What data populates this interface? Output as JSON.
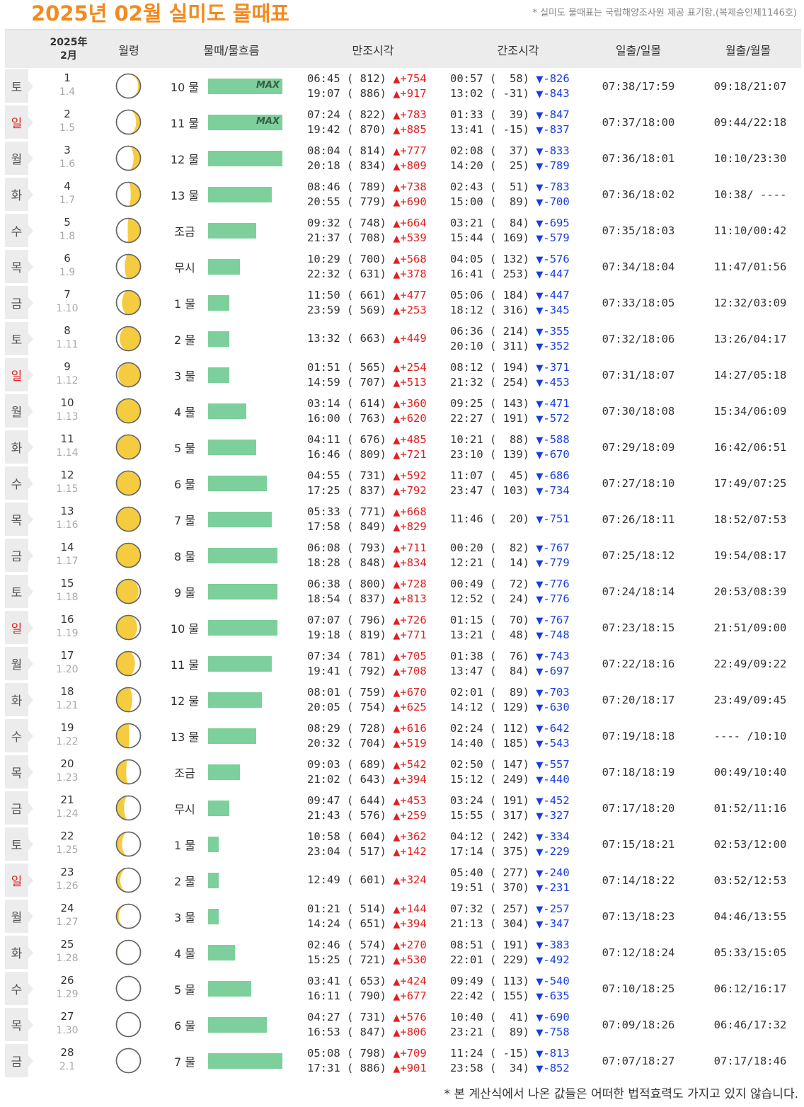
{
  "header": {
    "title": "2025년 02월 실미도 물때표",
    "source_note": "* 실미도 물때표는 국립해양조사원 제공 표기함.(복제승인제1146호)"
  },
  "columns": {
    "date_year": "2025年",
    "date_month": "2月",
    "moon_age": "월령",
    "tide": "물때/물흐름",
    "high": "만조시각",
    "low": "간조시각",
    "sun": "일출/일몰",
    "moon": "월출/월몰"
  },
  "tide_max_label": "MAX",
  "footnote": "* 본 계산식에서 나온 값들은 어떠한 법적효력도 가지고 있지 않습니다.",
  "rows": [
    {
      "dow": "토",
      "sun": false,
      "day": "1",
      "lunar": "1.4",
      "phase": 0.1,
      "tide": "10 물",
      "flow": 1.0,
      "max": true,
      "high": [
        {
          "t": "06:45",
          "h": "( 812)",
          "d": "+754"
        },
        {
          "t": "19:07",
          "h": "( 886)",
          "d": "+917"
        }
      ],
      "low": [
        {
          "t": "00:57",
          "h": "(  58)",
          "d": "-826"
        },
        {
          "t": "13:02",
          "h": "( -31)",
          "d": "-843"
        }
      ],
      "sunrs": "07:38/17:59",
      "moonrs": "09:18/21:07"
    },
    {
      "dow": "일",
      "sun": true,
      "day": "2",
      "lunar": "1.5",
      "phase": 0.14,
      "tide": "11 물",
      "flow": 1.0,
      "max": true,
      "high": [
        {
          "t": "07:24",
          "h": "( 822)",
          "d": "+783"
        },
        {
          "t": "19:42",
          "h": "( 870)",
          "d": "+885"
        }
      ],
      "low": [
        {
          "t": "01:33",
          "h": "(  39)",
          "d": "-847"
        },
        {
          "t": "13:41",
          "h": "( -15)",
          "d": "-837"
        }
      ],
      "sunrs": "07:37/18:00",
      "moonrs": "09:44/22:18"
    },
    {
      "dow": "월",
      "sun": false,
      "day": "3",
      "lunar": "1.6",
      "phase": 0.18,
      "tide": "12 물",
      "flow": 1.0,
      "max": false,
      "high": [
        {
          "t": "08:04",
          "h": "( 814)",
          "d": "+777"
        },
        {
          "t": "20:18",
          "h": "( 834)",
          "d": "+809"
        }
      ],
      "low": [
        {
          "t": "02:08",
          "h": "(  37)",
          "d": "-833"
        },
        {
          "t": "14:20",
          "h": "(  25)",
          "d": "-789"
        }
      ],
      "sunrs": "07:36/18:01",
      "moonrs": "10:10/23:30"
    },
    {
      "dow": "화",
      "sun": false,
      "day": "4",
      "lunar": "1.7",
      "phase": 0.22,
      "tide": "13 물",
      "flow": 0.86,
      "max": false,
      "high": [
        {
          "t": "08:46",
          "h": "( 789)",
          "d": "+738"
        },
        {
          "t": "20:55",
          "h": "( 779)",
          "d": "+690"
        }
      ],
      "low": [
        {
          "t": "02:43",
          "h": "(  51)",
          "d": "-783"
        },
        {
          "t": "15:00",
          "h": "(  89)",
          "d": "-700"
        }
      ],
      "sunrs": "07:36/18:02",
      "moonrs": "10:38/ ----"
    },
    {
      "dow": "수",
      "sun": false,
      "day": "5",
      "lunar": "1.8",
      "phase": 0.26,
      "tide": "조금",
      "flow": 0.65,
      "max": false,
      "high": [
        {
          "t": "09:32",
          "h": "( 748)",
          "d": "+664"
        },
        {
          "t": "21:37",
          "h": "( 708)",
          "d": "+539"
        }
      ],
      "low": [
        {
          "t": "03:21",
          "h": "(  84)",
          "d": "-695"
        },
        {
          "t": "15:44",
          "h": "( 169)",
          "d": "-579"
        }
      ],
      "sunrs": "07:35/18:03",
      "moonrs": "11:10/00:42"
    },
    {
      "dow": "목",
      "sun": false,
      "day": "6",
      "lunar": "1.9",
      "phase": 0.3,
      "tide": "무시",
      "flow": 0.43,
      "max": false,
      "high": [
        {
          "t": "10:29",
          "h": "( 700)",
          "d": "+568"
        },
        {
          "t": "22:32",
          "h": "( 631)",
          "d": "+378"
        }
      ],
      "low": [
        {
          "t": "04:05",
          "h": "( 132)",
          "d": "-576"
        },
        {
          "t": "16:41",
          "h": "( 253)",
          "d": "-447"
        }
      ],
      "sunrs": "07:34/18:04",
      "moonrs": "11:47/01:56"
    },
    {
      "dow": "금",
      "sun": false,
      "day": "7",
      "lunar": "1.10",
      "phase": 0.34,
      "tide": "1 물",
      "flow": 0.29,
      "max": false,
      "high": [
        {
          "t": "11:50",
          "h": "( 661)",
          "d": "+477"
        },
        {
          "t": "23:59",
          "h": "( 569)",
          "d": "+253"
        }
      ],
      "low": [
        {
          "t": "05:06",
          "h": "( 184)",
          "d": "-447"
        },
        {
          "t": "18:12",
          "h": "( 316)",
          "d": "-345"
        }
      ],
      "sunrs": "07:33/18:05",
      "moonrs": "12:32/03:09"
    },
    {
      "dow": "토",
      "sun": false,
      "day": "8",
      "lunar": "1.11",
      "phase": 0.38,
      "tide": "2 물",
      "flow": 0.29,
      "max": false,
      "high": [
        {
          "t": "13:32",
          "h": "( 663)",
          "d": "+449"
        }
      ],
      "low": [
        {
          "t": "06:36",
          "h": "( 214)",
          "d": "-355"
        },
        {
          "t": "20:10",
          "h": "( 311)",
          "d": "-352"
        }
      ],
      "sunrs": "07:32/18:06",
      "moonrs": "13:26/04:17"
    },
    {
      "dow": "일",
      "sun": true,
      "day": "9",
      "lunar": "1.12",
      "phase": 0.41,
      "tide": "3 물",
      "flow": 0.29,
      "max": false,
      "high": [
        {
          "t": "01:51",
          "h": "( 565)",
          "d": "+254"
        },
        {
          "t": "14:59",
          "h": "( 707)",
          "d": "+513"
        }
      ],
      "low": [
        {
          "t": "08:12",
          "h": "( 194)",
          "d": "-371"
        },
        {
          "t": "21:32",
          "h": "( 254)",
          "d": "-453"
        }
      ],
      "sunrs": "07:31/18:07",
      "moonrs": "14:27/05:18"
    },
    {
      "dow": "월",
      "sun": false,
      "day": "10",
      "lunar": "1.13",
      "phase": 0.44,
      "tide": "4 물",
      "flow": 0.51,
      "max": false,
      "high": [
        {
          "t": "03:14",
          "h": "( 614)",
          "d": "+360"
        },
        {
          "t": "16:00",
          "h": "( 763)",
          "d": "+620"
        }
      ],
      "low": [
        {
          "t": "09:25",
          "h": "( 143)",
          "d": "-471"
        },
        {
          "t": "22:27",
          "h": "( 191)",
          "d": "-572"
        }
      ],
      "sunrs": "07:30/18:08",
      "moonrs": "15:34/06:09"
    },
    {
      "dow": "화",
      "sun": false,
      "day": "11",
      "lunar": "1.14",
      "phase": 0.47,
      "tide": "5 물",
      "flow": 0.65,
      "max": false,
      "high": [
        {
          "t": "04:11",
          "h": "( 676)",
          "d": "+485"
        },
        {
          "t": "16:46",
          "h": "( 809)",
          "d": "+721"
        }
      ],
      "low": [
        {
          "t": "10:21",
          "h": "(  88)",
          "d": "-588"
        },
        {
          "t": "23:10",
          "h": "( 139)",
          "d": "-670"
        }
      ],
      "sunrs": "07:29/18:09",
      "moonrs": "16:42/06:51"
    },
    {
      "dow": "수",
      "sun": false,
      "day": "12",
      "lunar": "1.15",
      "phase": 0.5,
      "tide": "6 물",
      "flow": 0.79,
      "max": false,
      "high": [
        {
          "t": "04:55",
          "h": "( 731)",
          "d": "+592"
        },
        {
          "t": "17:25",
          "h": "( 837)",
          "d": "+792"
        }
      ],
      "low": [
        {
          "t": "11:07",
          "h": "(  45)",
          "d": "-686"
        },
        {
          "t": "23:47",
          "h": "( 103)",
          "d": "-734"
        }
      ],
      "sunrs": "07:27/18:10",
      "moonrs": "17:49/07:25"
    },
    {
      "dow": "목",
      "sun": false,
      "day": "13",
      "lunar": "1.16",
      "phase": 0.53,
      "tide": "7 물",
      "flow": 0.86,
      "max": false,
      "high": [
        {
          "t": "05:33",
          "h": "( 771)",
          "d": "+668"
        },
        {
          "t": "17:58",
          "h": "( 849)",
          "d": "+829"
        }
      ],
      "low": [
        {
          "t": "11:46",
          "h": "(  20)",
          "d": "-751"
        }
      ],
      "sunrs": "07:26/18:11",
      "moonrs": "18:52/07:53"
    },
    {
      "dow": "금",
      "sun": false,
      "day": "14",
      "lunar": "1.17",
      "phase": 0.56,
      "tide": "8 물",
      "flow": 0.93,
      "max": false,
      "high": [
        {
          "t": "06:08",
          "h": "( 793)",
          "d": "+711"
        },
        {
          "t": "18:28",
          "h": "( 848)",
          "d": "+834"
        }
      ],
      "low": [
        {
          "t": "00:20",
          "h": "(  82)",
          "d": "-767"
        },
        {
          "t": "12:21",
          "h": "(  14)",
          "d": "-779"
        }
      ],
      "sunrs": "07:25/18:12",
      "moonrs": "19:54/08:17"
    },
    {
      "dow": "토",
      "sun": false,
      "day": "15",
      "lunar": "1.18",
      "phase": 0.59,
      "tide": "9 물",
      "flow": 0.93,
      "max": false,
      "high": [
        {
          "t": "06:38",
          "h": "( 800)",
          "d": "+728"
        },
        {
          "t": "18:54",
          "h": "( 837)",
          "d": "+813"
        }
      ],
      "low": [
        {
          "t": "00:49",
          "h": "(  72)",
          "d": "-776"
        },
        {
          "t": "12:52",
          "h": "(  24)",
          "d": "-776"
        }
      ],
      "sunrs": "07:24/18:14",
      "moonrs": "20:53/08:39"
    },
    {
      "dow": "일",
      "sun": true,
      "day": "16",
      "lunar": "1.19",
      "phase": 0.62,
      "tide": "10 물",
      "flow": 0.93,
      "max": false,
      "high": [
        {
          "t": "07:07",
          "h": "( 796)",
          "d": "+726"
        },
        {
          "t": "19:18",
          "h": "( 819)",
          "d": "+771"
        }
      ],
      "low": [
        {
          "t": "01:15",
          "h": "(  70)",
          "d": "-767"
        },
        {
          "t": "13:21",
          "h": "(  48)",
          "d": "-748"
        }
      ],
      "sunrs": "07:23/18:15",
      "moonrs": "21:51/09:00"
    },
    {
      "dow": "월",
      "sun": false,
      "day": "17",
      "lunar": "1.20",
      "phase": 0.66,
      "tide": "11 물",
      "flow": 0.86,
      "max": false,
      "high": [
        {
          "t": "07:34",
          "h": "( 781)",
          "d": "+705"
        },
        {
          "t": "19:41",
          "h": "( 792)",
          "d": "+708"
        }
      ],
      "low": [
        {
          "t": "01:38",
          "h": "(  76)",
          "d": "-743"
        },
        {
          "t": "13:47",
          "h": "(  84)",
          "d": "-697"
        }
      ],
      "sunrs": "07:22/18:16",
      "moonrs": "22:49/09:22"
    },
    {
      "dow": "화",
      "sun": false,
      "day": "18",
      "lunar": "1.21",
      "phase": 0.7,
      "tide": "12 물",
      "flow": 0.72,
      "max": false,
      "high": [
        {
          "t": "08:01",
          "h": "( 759)",
          "d": "+670"
        },
        {
          "t": "20:05",
          "h": "( 754)",
          "d": "+625"
        }
      ],
      "low": [
        {
          "t": "02:01",
          "h": "(  89)",
          "d": "-703"
        },
        {
          "t": "14:12",
          "h": "( 129)",
          "d": "-630"
        }
      ],
      "sunrs": "07:20/18:17",
      "moonrs": "23:49/09:45"
    },
    {
      "dow": "수",
      "sun": false,
      "day": "19",
      "lunar": "1.22",
      "phase": 0.74,
      "tide": "13 물",
      "flow": 0.65,
      "max": false,
      "high": [
        {
          "t": "08:29",
          "h": "( 728)",
          "d": "+616"
        },
        {
          "t": "20:32",
          "h": "( 704)",
          "d": "+519"
        }
      ],
      "low": [
        {
          "t": "02:24",
          "h": "( 112)",
          "d": "-642"
        },
        {
          "t": "14:40",
          "h": "( 185)",
          "d": "-543"
        }
      ],
      "sunrs": "07:19/18:18",
      "moonrs": "---- /10:10"
    },
    {
      "dow": "목",
      "sun": false,
      "day": "20",
      "lunar": "1.23",
      "phase": 0.78,
      "tide": "조금",
      "flow": 0.43,
      "max": false,
      "high": [
        {
          "t": "09:03",
          "h": "( 689)",
          "d": "+542"
        },
        {
          "t": "21:02",
          "h": "( 643)",
          "d": "+394"
        }
      ],
      "low": [
        {
          "t": "02:50",
          "h": "( 147)",
          "d": "-557"
        },
        {
          "t": "15:12",
          "h": "( 249)",
          "d": "-440"
        }
      ],
      "sunrs": "07:18/18:19",
      "moonrs": "00:49/10:40"
    },
    {
      "dow": "금",
      "sun": false,
      "day": "21",
      "lunar": "1.24",
      "phase": 0.81,
      "tide": "무시",
      "flow": 0.29,
      "max": false,
      "high": [
        {
          "t": "09:47",
          "h": "( 644)",
          "d": "+453"
        },
        {
          "t": "21:43",
          "h": "( 576)",
          "d": "+259"
        }
      ],
      "low": [
        {
          "t": "03:24",
          "h": "( 191)",
          "d": "-452"
        },
        {
          "t": "15:55",
          "h": "( 317)",
          "d": "-327"
        }
      ],
      "sunrs": "07:17/18:20",
      "moonrs": "01:52/11:16"
    },
    {
      "dow": "토",
      "sun": false,
      "day": "22",
      "lunar": "1.25",
      "phase": 0.84,
      "tide": "1 물",
      "flow": 0.14,
      "max": false,
      "high": [
        {
          "t": "10:58",
          "h": "( 604)",
          "d": "+362"
        },
        {
          "t": "23:04",
          "h": "( 517)",
          "d": "+142"
        }
      ],
      "low": [
        {
          "t": "04:12",
          "h": "( 242)",
          "d": "-334"
        },
        {
          "t": "17:14",
          "h": "( 375)",
          "d": "-229"
        }
      ],
      "sunrs": "07:15/18:21",
      "moonrs": "02:53/12:00"
    },
    {
      "dow": "일",
      "sun": true,
      "day": "23",
      "lunar": "1.26",
      "phase": 0.87,
      "tide": "2 물",
      "flow": 0.14,
      "max": false,
      "high": [
        {
          "t": "12:49",
          "h": "( 601)",
          "d": "+324"
        }
      ],
      "low": [
        {
          "t": "05:40",
          "h": "( 277)",
          "d": "-240"
        },
        {
          "t": "19:51",
          "h": "( 370)",
          "d": "-231"
        }
      ],
      "sunrs": "07:14/18:22",
      "moonrs": "03:52/12:53"
    },
    {
      "dow": "월",
      "sun": false,
      "day": "24",
      "lunar": "1.27",
      "phase": 0.9,
      "tide": "3 물",
      "flow": 0.14,
      "max": false,
      "high": [
        {
          "t": "01:21",
          "h": "( 514)",
          "d": "+144"
        },
        {
          "t": "14:24",
          "h": "( 651)",
          "d": "+394"
        }
      ],
      "low": [
        {
          "t": "07:32",
          "h": "( 257)",
          "d": "-257"
        },
        {
          "t": "21:13",
          "h": "( 304)",
          "d": "-347"
        }
      ],
      "sunrs": "07:13/18:23",
      "moonrs": "04:46/13:55"
    },
    {
      "dow": "화",
      "sun": false,
      "day": "25",
      "lunar": "1.28",
      "phase": 0.93,
      "tide": "4 물",
      "flow": 0.36,
      "max": false,
      "high": [
        {
          "t": "02:46",
          "h": "( 574)",
          "d": "+270"
        },
        {
          "t": "15:25",
          "h": "( 721)",
          "d": "+530"
        }
      ],
      "low": [
        {
          "t": "08:51",
          "h": "( 191)",
          "d": "-383"
        },
        {
          "t": "22:01",
          "h": "( 229)",
          "d": "-492"
        }
      ],
      "sunrs": "07:12/18:24",
      "moonrs": "05:33/15:05"
    },
    {
      "dow": "수",
      "sun": false,
      "day": "26",
      "lunar": "1.29",
      "phase": 0.96,
      "tide": "5 물",
      "flow": 0.58,
      "max": false,
      "high": [
        {
          "t": "03:41",
          "h": "( 653)",
          "d": "+424"
        },
        {
          "t": "16:11",
          "h": "( 790)",
          "d": "+677"
        }
      ],
      "low": [
        {
          "t": "09:49",
          "h": "( 113)",
          "d": "-540"
        },
        {
          "t": "22:42",
          "h": "( 155)",
          "d": "-635"
        }
      ],
      "sunrs": "07:10/18:25",
      "moonrs": "06:12/16:17"
    },
    {
      "dow": "목",
      "sun": false,
      "day": "27",
      "lunar": "1.30",
      "phase": 1.0,
      "tide": "6 물",
      "flow": 0.79,
      "max": false,
      "high": [
        {
          "t": "04:27",
          "h": "( 731)",
          "d": "+576"
        },
        {
          "t": "16:53",
          "h": "( 847)",
          "d": "+806"
        }
      ],
      "low": [
        {
          "t": "10:40",
          "h": "(  41)",
          "d": "-690"
        },
        {
          "t": "23:21",
          "h": "(  89)",
          "d": "-758"
        }
      ],
      "sunrs": "07:09/18:26",
      "moonrs": "06:46/17:32"
    },
    {
      "dow": "금",
      "sun": false,
      "day": "28",
      "lunar": "2.1",
      "phase": 0.03,
      "tide": "7 물",
      "flow": 1.0,
      "max": false,
      "high": [
        {
          "t": "05:08",
          "h": "( 798)",
          "d": "+709"
        },
        {
          "t": "17:31",
          "h": "( 886)",
          "d": "+901"
        }
      ],
      "low": [
        {
          "t": "11:24",
          "h": "( -15)",
          "d": "-813"
        },
        {
          "t": "23:58",
          "h": "(  34)",
          "d": "-852"
        }
      ],
      "sunrs": "07:07/18:27",
      "moonrs": "07:17/18:46"
    }
  ]
}
